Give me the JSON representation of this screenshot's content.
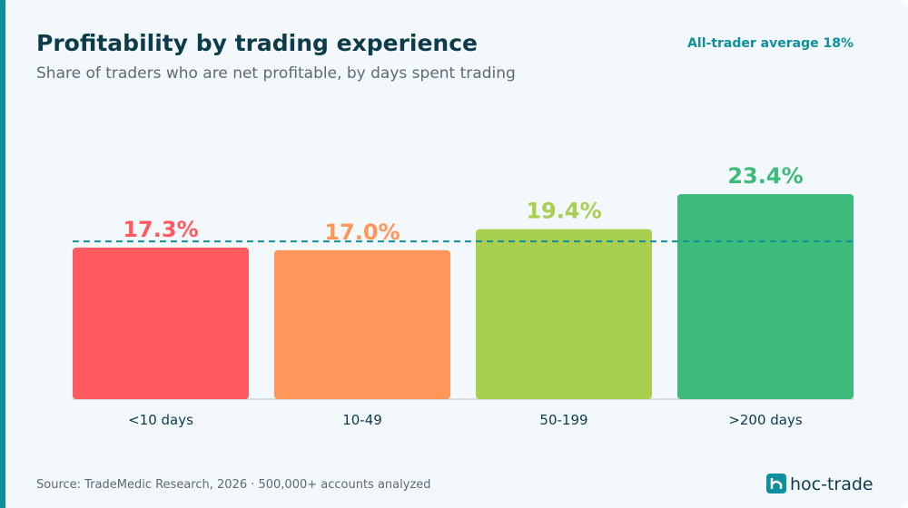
{
  "chart_data": {
    "type": "bar",
    "title": "Profitability by trading experience",
    "subtitle": "Share of traders who are net profitable, by days spent trading",
    "annotation": "All-trader average 18%",
    "average": 18,
    "categories": [
      "<10 days",
      "10-49",
      "50-199",
      ">200 days"
    ],
    "values": [
      17.3,
      17.0,
      19.4,
      23.4
    ],
    "value_labels": [
      "17.3%",
      "17.0%",
      "19.4%",
      "23.4%"
    ],
    "colors": [
      "#ff5a5f",
      "#ff965a",
      "#a8cf4e",
      "#3dbb7a"
    ],
    "ylim": [
      0,
      25
    ],
    "source": "Source: TradeMedic Research, 2026 · 500,000+ accounts analyzed",
    "logo": "hoc-trade"
  }
}
